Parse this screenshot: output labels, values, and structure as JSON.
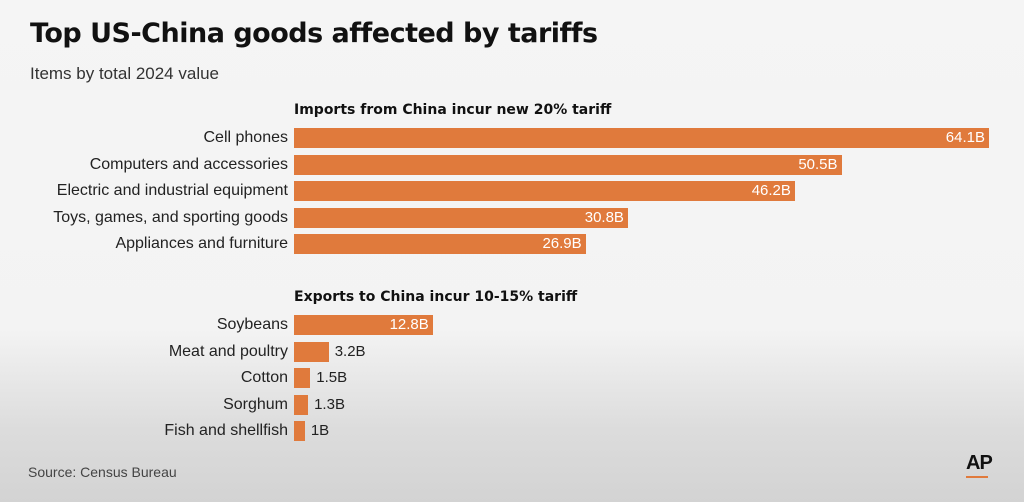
{
  "title": "Top US-China goods affected by tariffs",
  "subtitle": "Items by total 2024 value",
  "source": "Source: Census Bureau",
  "logo": "AP",
  "colors": {
    "bar": "#e07a3c",
    "background": "#f3f3f3"
  },
  "chart_data": [
    {
      "type": "bar",
      "orientation": "horizontal",
      "title": "Imports from China incur new 20% tariff",
      "categories": [
        "Cell phones",
        "Computers and accessories",
        "Electric and industrial equipment",
        "Toys, games, and sporting goods",
        "Appliances and furniture"
      ],
      "values": [
        64.1,
        50.5,
        46.2,
        30.8,
        26.9
      ],
      "labels": [
        "64.1B",
        "50.5B",
        "46.2B",
        "30.8B",
        "26.9B"
      ],
      "unit": "B",
      "xlim": [
        0,
        64.1
      ],
      "grid": false
    },
    {
      "type": "bar",
      "orientation": "horizontal",
      "title": "Exports to China incur 10-15% tariff",
      "categories": [
        "Soybeans",
        "Meat and poultry",
        "Cotton",
        "Sorghum",
        "Fish and shellfish"
      ],
      "values": [
        12.8,
        3.2,
        1.5,
        1.3,
        1
      ],
      "labels": [
        "12.8B",
        "3.2B",
        "1.5B",
        "1.3B",
        "1B"
      ],
      "unit": "B",
      "xlim": [
        0,
        64.1
      ],
      "grid": false
    }
  ]
}
